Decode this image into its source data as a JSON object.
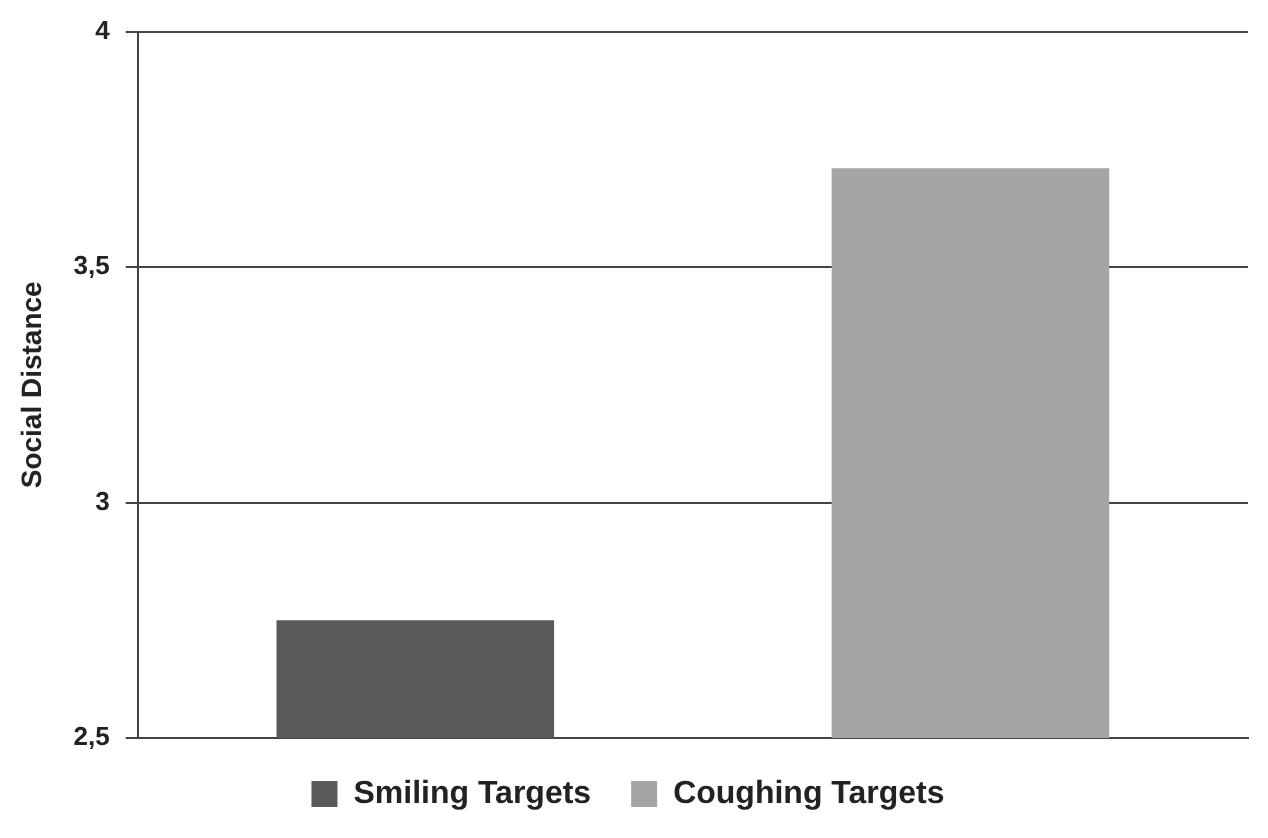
{
  "chart_data": {
    "type": "bar",
    "ylabel": "Social Distance",
    "categories": [
      null,
      null
    ],
    "series": [
      {
        "name": "Smiling Targets",
        "color": "#595959",
        "values": [
          2.75,
          null
        ]
      },
      {
        "name": "Coughing Targets",
        "color": "#a5a5a5",
        "values": [
          null,
          3.71
        ]
      }
    ],
    "ylim": [
      2.5,
      4
    ],
    "yticks": [
      {
        "value": 2.5,
        "label": "2,5"
      },
      3,
      {
        "value": 3.5,
        "label": "3,5"
      },
      4
    ],
    "grid": "y",
    "legend": "bottom"
  }
}
